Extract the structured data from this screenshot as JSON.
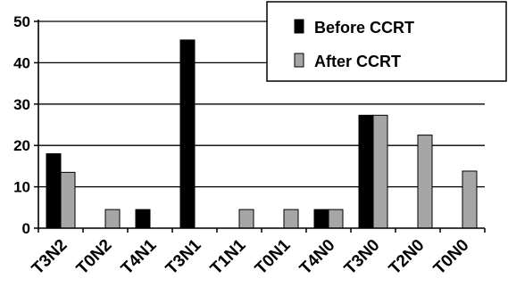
{
  "chart_data": {
    "type": "bar",
    "categories": [
      "T3N2",
      "T0N2",
      "T4N1",
      "T3N1",
      "T1N1",
      "T0N1",
      "T4N0",
      "T3N0",
      "T2N0",
      "T0N0"
    ],
    "series": [
      {
        "name": "Before CCRT",
        "color": "#000000",
        "values": [
          18,
          0,
          4.5,
          45.5,
          0,
          0,
          4.5,
          27.3,
          0,
          0
        ]
      },
      {
        "name": "After CCRT",
        "color": "#a6a6a6",
        "values": [
          13.5,
          4.5,
          0,
          0,
          4.5,
          4.5,
          4.5,
          27.3,
          22.5,
          13.8
        ]
      }
    ],
    "ylim": [
      0,
      50
    ],
    "yticks": [
      "0",
      "10",
      "20",
      "30",
      "40",
      "50"
    ],
    "grid": true,
    "legend": "top-right"
  }
}
